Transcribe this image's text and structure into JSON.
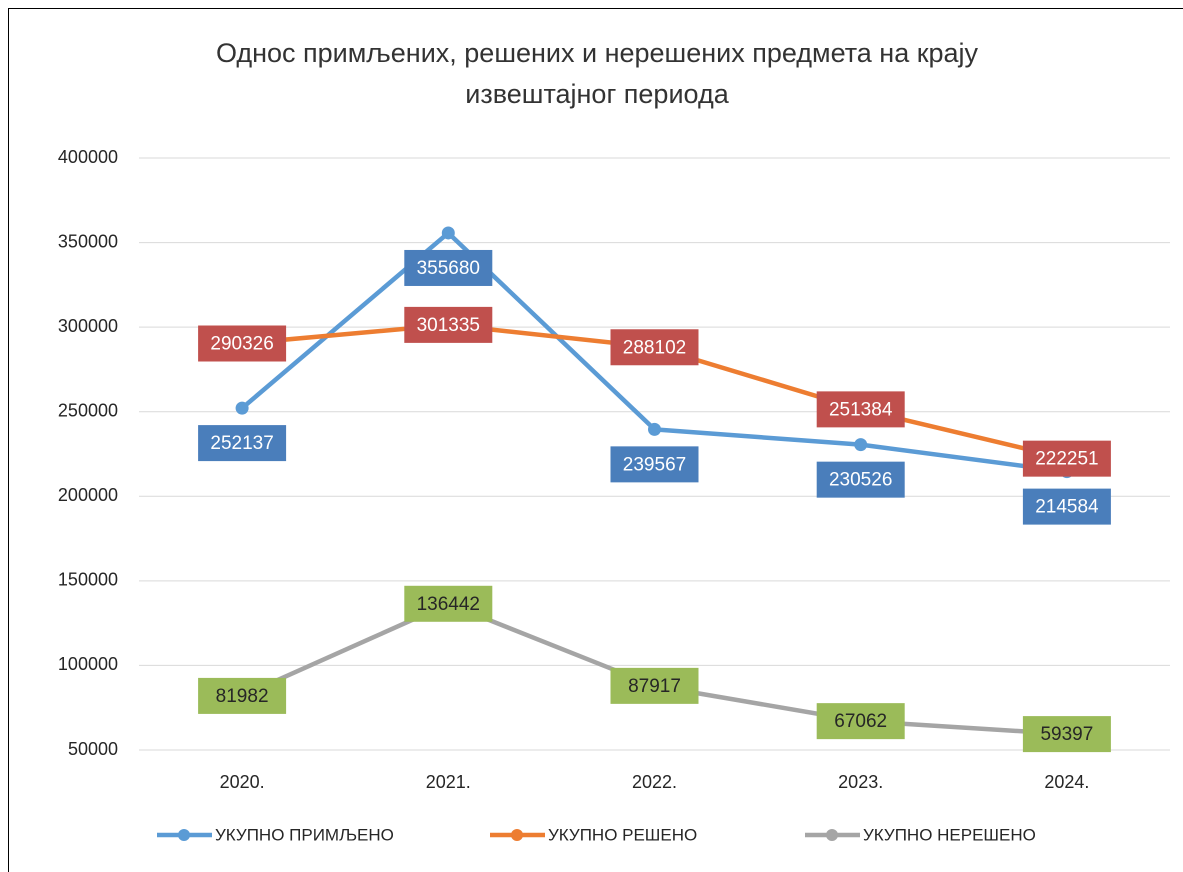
{
  "chart_data": {
    "type": "line",
    "title": [
      "Однос примљених, решених и нерешених предмета на крају",
      "извештајног периода"
    ],
    "categories": [
      "2020.",
      "2021.",
      "2022.",
      "2023.",
      "2024."
    ],
    "series": [
      {
        "name": "УКУПНО ПРИМЉЕНО",
        "color": "#5b9bd5",
        "label_color": "#4a7ebb",
        "values": [
          252137,
          355680,
          239567,
          230526,
          214584
        ]
      },
      {
        "name": "УКУПНО РЕШЕНО",
        "color": "#ed7d31",
        "label_color": "#c0504d",
        "values": [
          290326,
          301335,
          288102,
          251384,
          222251
        ]
      },
      {
        "name": "УКУПНО НЕРЕШЕНО",
        "color": "#a5a5a5",
        "label_color": "#9bbb59",
        "values": [
          81982,
          136442,
          87917,
          67062,
          59397
        ]
      }
    ],
    "ylim": [
      50000,
      400000
    ],
    "yticks": [
      50000,
      100000,
      150000,
      200000,
      250000,
      300000,
      350000,
      400000
    ],
    "grid": true,
    "legend": "bottom"
  }
}
